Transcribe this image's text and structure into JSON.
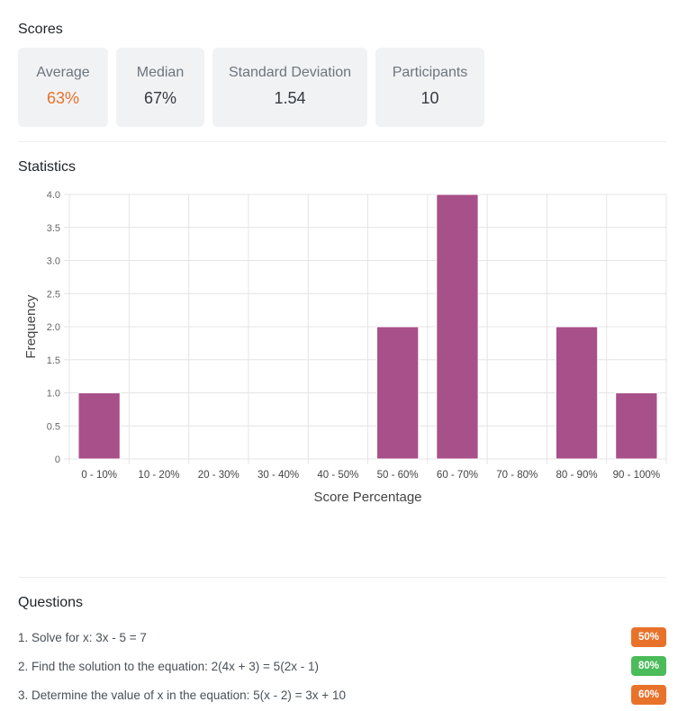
{
  "scores": {
    "title": "Scores",
    "cards": [
      {
        "label": "Average",
        "value": "63%",
        "accent": true
      },
      {
        "label": "Median",
        "value": "67%",
        "accent": false
      },
      {
        "label": "Standard Deviation",
        "value": "1.54",
        "accent": false
      },
      {
        "label": "Participants",
        "value": "10",
        "accent": false
      }
    ]
  },
  "statistics": {
    "title": "Statistics"
  },
  "chart_data": {
    "type": "bar",
    "categories": [
      "0 - 10%",
      "10 - 20%",
      "20 - 30%",
      "30 - 40%",
      "40 - 50%",
      "50 - 60%",
      "60 - 70%",
      "70 - 80%",
      "80 - 90%",
      "90 - 100%"
    ],
    "values": [
      1,
      0,
      0,
      0,
      0,
      2,
      4,
      0,
      2,
      1
    ],
    "xlabel": "Score Percentage",
    "ylabel": "Frequency",
    "ylim": [
      0,
      4
    ],
    "yticks": [
      "0",
      "0.5",
      "1.0",
      "1.5",
      "2.0",
      "2.5",
      "3.0",
      "3.5",
      "4.0"
    ],
    "grid": true,
    "bar_color": "#a8508a"
  },
  "questions": {
    "title": "Questions",
    "items": [
      {
        "text": "1. Solve for x: 3x - 5 = 7",
        "badge": "50%",
        "badge_color": "#e8722a"
      },
      {
        "text": "2. Find the solution to the equation: 2(4x + 3) = 5(2x - 1)",
        "badge": "80%",
        "badge_color": "#4cbb5a"
      },
      {
        "text": "3. Determine the value of x in the equation: 5(x - 2) = 3x + 10",
        "badge": "60%",
        "badge_color": "#e8722a"
      }
    ]
  }
}
